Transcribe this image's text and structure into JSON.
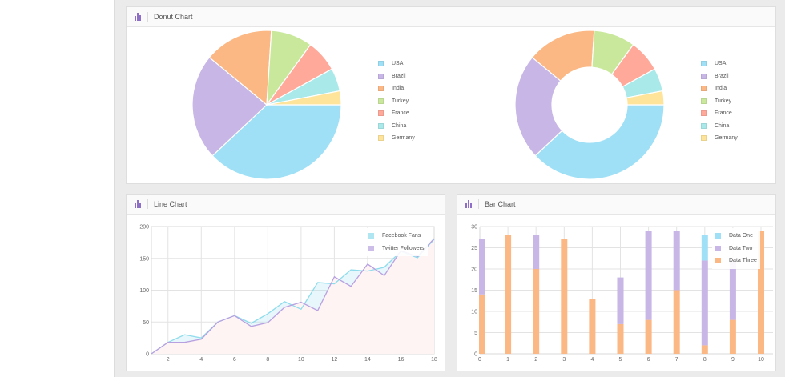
{
  "panels": {
    "donut": {
      "title": "Donut Chart"
    },
    "line": {
      "title": "Line Chart"
    },
    "bar": {
      "title": "Bar Chart"
    }
  },
  "colors": {
    "USA": "#9fe0f6",
    "Brazil": "#c7b6e6",
    "India": "#fbb884",
    "Turkey": "#c9e89c",
    "France": "#ffa99b",
    "China": "#aae9ea",
    "Germany": "#fde49a",
    "line_fb": "#8fdcec",
    "line_tw": "#b8a1e0",
    "area_fill": "#fff4f4"
  },
  "chart_data": [
    {
      "type": "pie",
      "categories": [
        "USA",
        "Brazil",
        "India",
        "Turkey",
        "France",
        "China",
        "Germany"
      ],
      "values": [
        38,
        23,
        15,
        9,
        7,
        5,
        3
      ]
    },
    {
      "type": "pie",
      "donut": true,
      "categories": [
        "USA",
        "Brazil",
        "India",
        "Turkey",
        "France",
        "China",
        "Germany"
      ],
      "values": [
        38,
        23,
        15,
        9,
        7,
        5,
        3
      ]
    },
    {
      "type": "line",
      "series": [
        {
          "name": "Facebook Fans",
          "x": [
            1,
            2,
            3,
            4,
            5,
            6,
            7,
            8,
            9,
            10,
            11,
            12,
            13,
            14,
            15,
            16,
            17,
            18
          ],
          "values": [
            0,
            18,
            30,
            25,
            50,
            60,
            48,
            63,
            82,
            70,
            112,
            110,
            132,
            130,
            136,
            161,
            151,
            180
          ]
        },
        {
          "name": "Twitter Followers",
          "x": [
            1,
            2,
            3,
            4,
            5,
            6,
            7,
            8,
            9,
            10,
            11,
            12,
            13,
            14,
            15,
            16,
            17,
            18
          ],
          "values": [
            0,
            18,
            18,
            23,
            50,
            60,
            43,
            49,
            73,
            81,
            68,
            121,
            106,
            141,
            123,
            162,
            153,
            181
          ]
        }
      ],
      "xticks": [
        2,
        4,
        6,
        8,
        10,
        12,
        14,
        16,
        18
      ],
      "yticks": [
        0,
        50,
        100,
        150,
        200
      ],
      "xlim": [
        1,
        18
      ],
      "ylim": [
        0,
        200
      ],
      "grid": true,
      "legend": "top-right"
    },
    {
      "type": "bar",
      "stacked": true,
      "series": [
        {
          "name": "Data One",
          "x": [
            0,
            1,
            2,
            3,
            4,
            5,
            6,
            7,
            8,
            9,
            10
          ],
          "values": [
            0,
            0,
            0,
            0,
            0,
            0,
            0,
            0,
            6,
            0,
            0
          ],
          "color": "#9fe0f6"
        },
        {
          "name": "Data Two",
          "x": [
            0,
            1,
            2,
            3,
            4,
            5,
            6,
            7,
            8,
            9,
            10
          ],
          "values": [
            13,
            0,
            8,
            0,
            0,
            11,
            21,
            14,
            20,
            14,
            0
          ],
          "color": "#c7b6e6"
        },
        {
          "name": "Data Three",
          "x": [
            0,
            1,
            2,
            3,
            4,
            5,
            6,
            7,
            8,
            9,
            10
          ],
          "values": [
            14,
            28,
            20,
            27,
            13,
            7,
            8,
            15,
            2,
            8,
            29
          ],
          "color": "#fbb884"
        }
      ],
      "xticks": [
        0,
        1,
        2,
        3,
        4,
        5,
        6,
        7,
        8,
        9,
        10
      ],
      "yticks": [
        0,
        5,
        10,
        15,
        20,
        25,
        30
      ],
      "xlim": [
        0,
        10
      ],
      "ylim": [
        0,
        30
      ],
      "grid": true,
      "legend": "top-right"
    }
  ]
}
